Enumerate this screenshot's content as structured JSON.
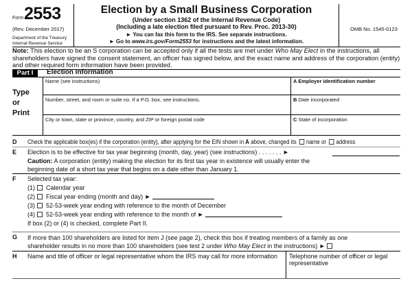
{
  "header": {
    "form_label": "Form",
    "form_number": "2553",
    "revision": "(Rev. December 2017)",
    "department": "Department of the Treasury",
    "service": "Internal Revenue Service",
    "title": "Election by a Small Business Corporation",
    "subtitle1": "(Under section 1362 of the Internal Revenue Code)",
    "subtitle2": "(Including a late election filed pursuant to Rev. Proc. 2013-30)",
    "fax_note": "► You can fax this form to the IRS. See separate instructions.",
    "goto_prefix": "► Go to ",
    "goto_url": "www.irs.gov/Form2553",
    "goto_suffix": " for instructions and the latest information.",
    "omb": "OMB No. 1545-0123"
  },
  "note": {
    "label": "Note:",
    "text1": " This election to be an S corporation can be accepted only if all the tests are met under ",
    "italic": "Who May Elect",
    "text2": " in the instructions, all shareholders have signed the consent statement, an officer has signed below, and the exact name and address of the corporation (entity) and other required form information have been provided."
  },
  "part1": {
    "label": "Part I",
    "title": "Election Information",
    "type_print": [
      "Type",
      "or",
      "Print"
    ],
    "fields": {
      "name": "Name (see instructions)",
      "street": "Number, street, and room or suite no. If a P.O. box, see instructions.",
      "city": "City or town, state or province, country, and ZIP or foreign postal code",
      "a_letter": "A",
      "a_label": "Employer identification number",
      "b_letter": "B",
      "b_label": "Date incorporated",
      "c_letter": "C",
      "c_label": "State of incorporation"
    }
  },
  "d": {
    "letter": "D",
    "text_pre": "Check the applicable box(es) if the corporation (entity), after applying for the EIN shown in ",
    "bold": "A",
    "text_post": " above, changed its",
    "opt_name": "name or",
    "opt_address": "address"
  },
  "e": {
    "letter": "E",
    "text": "Election is to be effective for tax year beginning (month, day, year) (see instructions) .   .   .   .   .   .   .  ►",
    "caution_label": "Caution:",
    "caution": " A corporation (entity) making the election for its first tax year in existence will usually enter the beginning date of a short tax year that begins on a date other than January 1."
  },
  "f": {
    "letter": "F",
    "title": "Selected tax year:",
    "options": [
      {
        "num": "(1)",
        "label": "Calendar year"
      },
      {
        "num": "(2)",
        "label": "Fiscal year ending (month and day) ►"
      },
      {
        "num": "(3)",
        "label": "52-53-week year ending with reference to the month of December"
      },
      {
        "num": "(4)",
        "label": "52-53-week year ending with reference to the month of  ►"
      }
    ],
    "footer": "If box (2) or (4) is checked, complete Part II."
  },
  "g": {
    "letter": "G",
    "text1": "If more than 100 shareholders are listed for item J (see page 2), check this box if treating members of a family as one",
    "text2": "shareholder results in no more than 100 shareholders (see test 2 under ",
    "italic": "Who May Elect",
    "text3": " in the instructions) ►"
  },
  "h": {
    "letter": "H",
    "text": "Name and title of officer or legal representative whom the IRS may call for more information",
    "phone": "Telephone number of officer or legal representative"
  }
}
